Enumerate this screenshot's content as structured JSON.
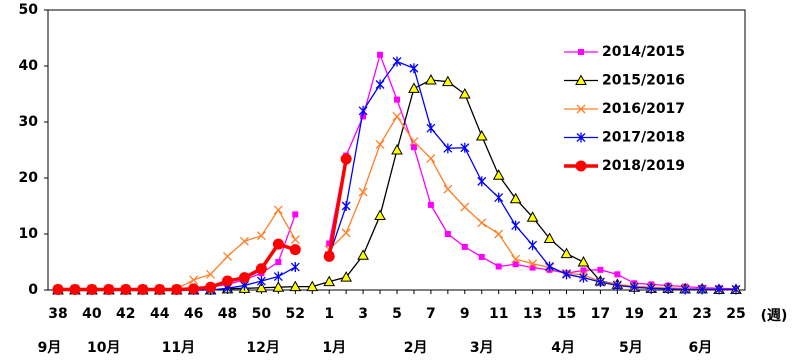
{
  "chart_data": {
    "type": "line",
    "categories": [
      "38",
      null,
      "40",
      null,
      "42",
      null,
      "44",
      null,
      "46",
      null,
      "48",
      null,
      "50",
      null,
      "52",
      null,
      "1",
      null,
      "3",
      null,
      "5",
      null,
      "7",
      null,
      "9",
      null,
      "11",
      null,
      "13",
      null,
      "15",
      null,
      "17",
      null,
      "19",
      null,
      "21",
      null,
      "23",
      null,
      "25"
    ],
    "x_label": "(週)",
    "months": [
      "9月",
      "10月",
      "11月",
      "12月",
      "1月",
      "2月",
      "3月",
      "4月",
      "5月",
      "6月"
    ],
    "ylim": [
      0,
      50
    ],
    "yticks": [
      0,
      10,
      20,
      30,
      40,
      50
    ],
    "series": [
      {
        "name": "2014/2015",
        "color": "#ff00ff",
        "marker": "square",
        "values": [
          0.1,
          0.1,
          0.1,
          0.1,
          0.1,
          0.1,
          0.1,
          0.1,
          0.3,
          0.5,
          1.0,
          1.8,
          3.0,
          5.0,
          13.5,
          null,
          8.3,
          24,
          31,
          42,
          34,
          25.5,
          15.2,
          10,
          7.7,
          5.9,
          4.2,
          4.6,
          4.0,
          3.6,
          3.0,
          3.5,
          3.6,
          2.8,
          1.2,
          1.0,
          0.8,
          0.6,
          0.4,
          0.3,
          0.2
        ]
      },
      {
        "name": "2015/2016",
        "color": "#000000",
        "marker": "triangle",
        "values": [
          0,
          0,
          0,
          0,
          0,
          0,
          0,
          0,
          0,
          0,
          0.2,
          0.3,
          0.4,
          0.5,
          0.6,
          0.6,
          1.5,
          2.3,
          6.2,
          13.3,
          25,
          36,
          37.5,
          37.2,
          35,
          27.5,
          20.5,
          16.3,
          13,
          9.2,
          6.5,
          5,
          1.6,
          1.0,
          0.5,
          0.3,
          0.3,
          0.2,
          0.2,
          0.1,
          0.1
        ]
      },
      {
        "name": "2016/2017",
        "color": "#ff7f27",
        "marker": "cross",
        "values": [
          0.2,
          0.2,
          0.2,
          0.2,
          0.2,
          0.2,
          0.2,
          0.2,
          1.8,
          2.8,
          6,
          8.7,
          9.7,
          14.3,
          9,
          null,
          7.2,
          10.2,
          17.5,
          26,
          31,
          26.5,
          23.5,
          18,
          14.8,
          12,
          10,
          5.5,
          4.7,
          4.0,
          3.0,
          2.7,
          1.5,
          1.0,
          0.7,
          0.5,
          0.4,
          0.3,
          0.2,
          0.1,
          0.1
        ]
      },
      {
        "name": "2017/2018",
        "color": "#0000ff",
        "marker": "star",
        "values": [
          0,
          0,
          0,
          0,
          0,
          0,
          0,
          0,
          0,
          0,
          0.3,
          0.8,
          1.6,
          2.4,
          4.1,
          null,
          6.1,
          15,
          32,
          36.7,
          40.8,
          39.6,
          28.9,
          25.3,
          25.4,
          19.4,
          16.5,
          11.5,
          8,
          4.2,
          2.8,
          2.2,
          1.4,
          0.8,
          0.5,
          0.3,
          0.2,
          0.1,
          0.1,
          0.1,
          0.1
        ]
      },
      {
        "name": "2018/2019",
        "color": "#ff0000",
        "marker": "circle",
        "values": [
          0.1,
          0.1,
          0.1,
          0.1,
          0.1,
          0.1,
          0.1,
          0.1,
          0.2,
          0.5,
          1.6,
          2.2,
          3.8,
          8.2,
          7.2,
          null,
          6.0,
          23.4,
          null,
          null,
          null,
          null,
          null,
          null,
          null,
          null,
          null,
          null,
          null,
          null,
          null,
          null,
          null,
          null,
          null,
          null,
          null,
          null,
          null,
          null,
          null
        ]
      }
    ]
  }
}
